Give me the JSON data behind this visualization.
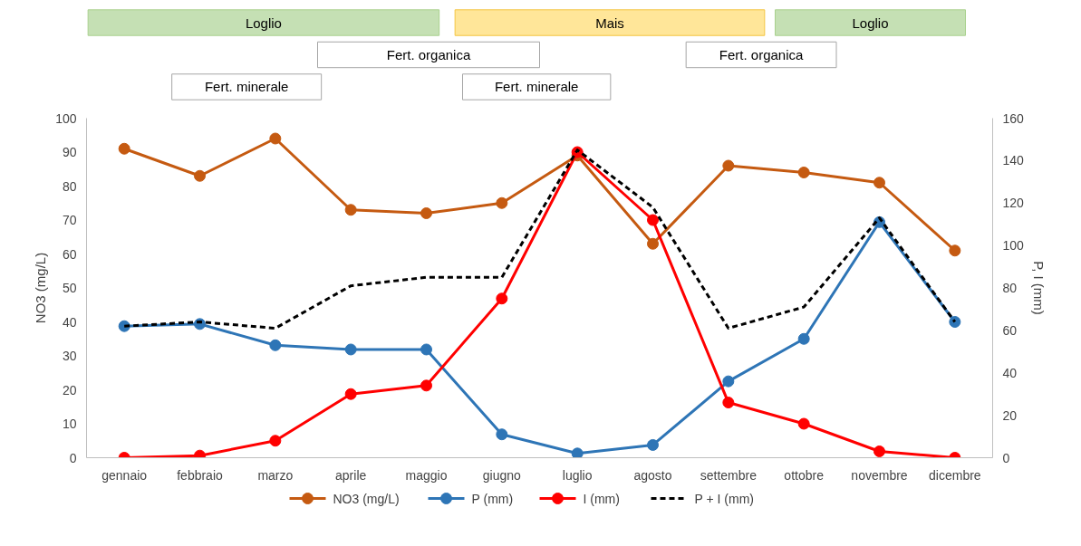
{
  "chart_data": {
    "type": "line",
    "categories": [
      "gennaio",
      "febbraio",
      "marzo",
      "aprile",
      "maggio",
      "giugno",
      "luglio",
      "agosto",
      "settembre",
      "ottobre",
      "novembre",
      "dicembre"
    ],
    "ylabel": "NO3 (mg/L)",
    "y2label": "P, I (mm)",
    "ylim": [
      0,
      100
    ],
    "yticks": [
      0,
      10,
      20,
      30,
      40,
      50,
      60,
      70,
      80,
      90,
      100
    ],
    "y2lim": [
      0,
      160
    ],
    "y2ticks": [
      0,
      20,
      40,
      60,
      80,
      100,
      120,
      140,
      160
    ],
    "grid": false,
    "legend": "bottom",
    "marker": "circle",
    "annotations": [
      "Loglio",
      "Mais",
      "Loglio",
      "Fert. organica",
      "Fert. organica",
      "Fert. minerale",
      "Fert. minerale"
    ],
    "series": [
      {
        "name": "NO3 (mg/L)",
        "color": "#c55a11",
        "values": [
          91,
          83,
          94,
          73,
          72,
          75,
          89,
          63,
          86,
          84,
          81,
          61
        ]
      },
      {
        "name": "P (mm)",
        "color": "#2e75b6",
        "axis": "y2",
        "values": [
          62,
          63,
          53,
          51,
          51,
          11,
          2,
          6,
          36,
          56,
          111,
          64
        ]
      },
      {
        "name": "I (mm)",
        "color": "#ff0000",
        "axis": "y2",
        "values": [
          0,
          1,
          8,
          30,
          34,
          75,
          144,
          112,
          26,
          16,
          3,
          0
        ]
      },
      {
        "name": "P + I (mm)",
        "color": "#000000",
        "axis": "y2",
        "marker": "none",
        "line_style": "dashed",
        "values": [
          62,
          64,
          61,
          81,
          85,
          85,
          145,
          118,
          61,
          71,
          113,
          64
        ]
      }
    ]
  }
}
